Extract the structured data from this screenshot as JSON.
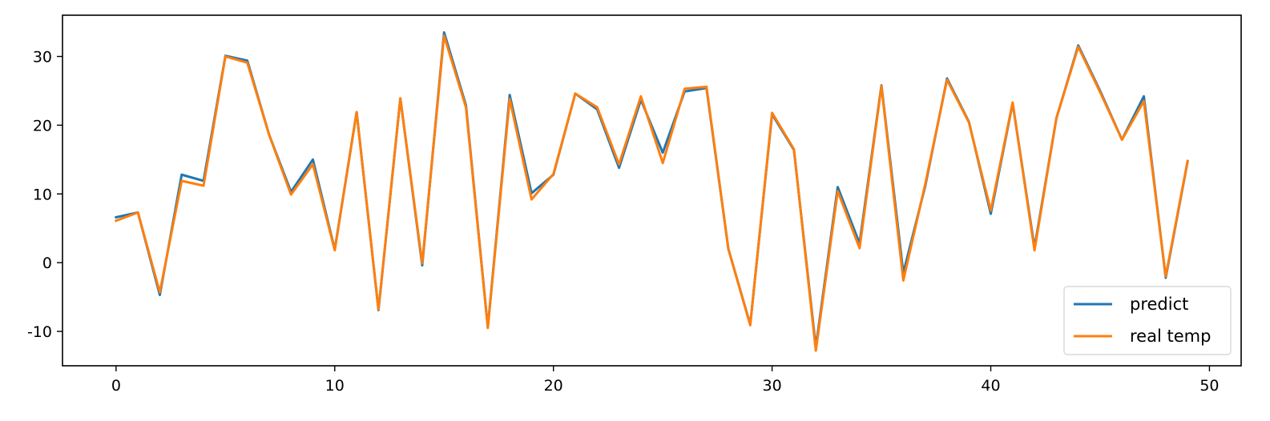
{
  "chart_data": {
    "type": "line",
    "title": "",
    "xlabel": "",
    "ylabel": "",
    "xlim": [
      -2.45,
      51.45
    ],
    "ylim": [
      -15,
      36
    ],
    "xticks": [
      0,
      10,
      20,
      30,
      40,
      50
    ],
    "yticks": [
      -10,
      0,
      10,
      20,
      30
    ],
    "x": [
      0,
      1,
      2,
      3,
      4,
      5,
      6,
      7,
      8,
      9,
      10,
      11,
      12,
      13,
      14,
      15,
      16,
      17,
      18,
      19,
      20,
      21,
      22,
      23,
      24,
      25,
      26,
      27,
      28,
      29,
      30,
      31,
      32,
      33,
      34,
      35,
      36,
      37,
      38,
      39,
      40,
      41,
      42,
      43,
      44,
      45,
      46,
      47,
      48,
      49
    ],
    "series": [
      {
        "name": "predict",
        "color": "#1f77b4",
        "values": [
          6.6,
          7.3,
          -4.7,
          12.8,
          11.9,
          30.1,
          29.4,
          18.6,
          10.3,
          15.0,
          1.9,
          21.9,
          -6.9,
          23.9,
          -0.4,
          33.5,
          22.9,
          -9.4,
          24.4,
          10.1,
          12.8,
          24.6,
          22.3,
          13.8,
          23.7,
          16.0,
          24.9,
          25.4,
          2.0,
          -9.0,
          21.6,
          16.4,
          -12.3,
          11.0,
          2.8,
          25.8,
          -1.5,
          11.1,
          26.8,
          20.5,
          7.1,
          23.2,
          2.2,
          21.0,
          31.6,
          25.0,
          17.9,
          24.2,
          -2.2,
          14.7
        ]
      },
      {
        "name": "real temp",
        "color": "#ff7f0e",
        "values": [
          6.1,
          7.3,
          -4.3,
          11.9,
          11.2,
          30.0,
          29.1,
          18.6,
          9.9,
          14.3,
          1.8,
          21.9,
          -6.8,
          23.9,
          -0.1,
          33.0,
          22.6,
          -9.5,
          23.8,
          9.2,
          12.9,
          24.6,
          22.6,
          14.3,
          24.2,
          14.5,
          25.3,
          25.6,
          2.0,
          -9.1,
          21.8,
          16.5,
          -12.8,
          10.4,
          2.1,
          25.7,
          -2.6,
          11.4,
          26.6,
          20.4,
          7.6,
          23.3,
          1.8,
          21.0,
          31.4,
          24.8,
          17.9,
          23.5,
          -2.0,
          14.8
        ]
      }
    ],
    "grid": false,
    "legend": "lower-right"
  }
}
